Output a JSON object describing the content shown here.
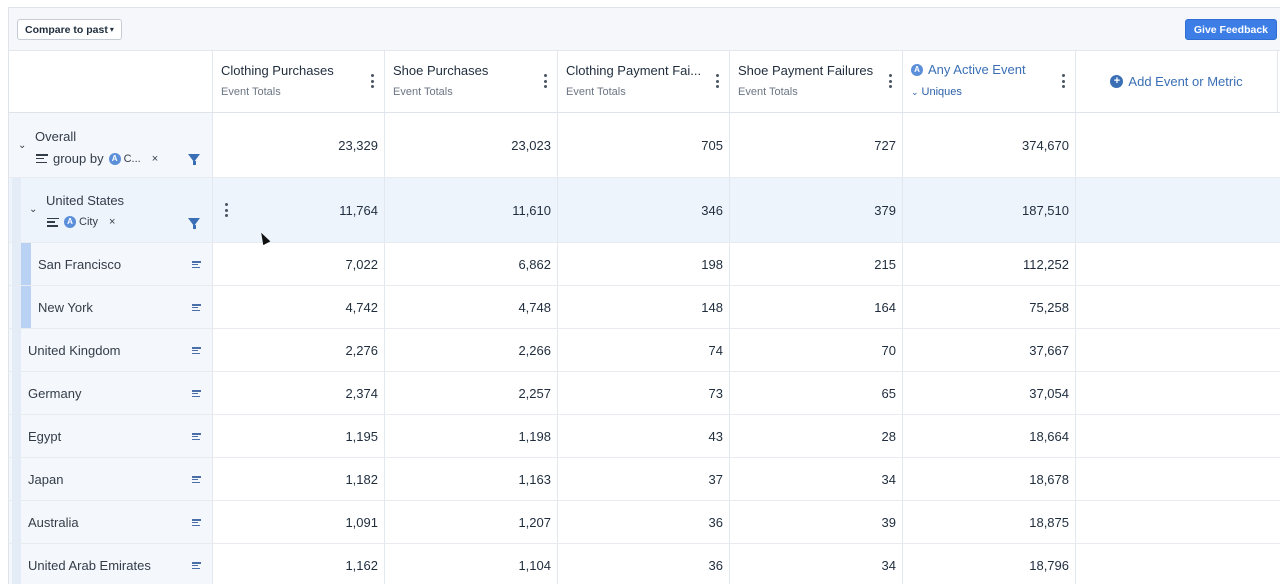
{
  "toolbar": {
    "compare_label": "Compare to past",
    "feedback_label": "Give Feedback"
  },
  "columns": [
    {
      "title": "Clothing Purchases",
      "sub": "Event Totals"
    },
    {
      "title": "Shoe Purchases",
      "sub": "Event Totals"
    },
    {
      "title": "Clothing Payment Fai...",
      "sub": "Event Totals"
    },
    {
      "title": "Shoe Payment Failures",
      "sub": "Event Totals"
    },
    {
      "title": "Any Active Event",
      "sub": "Uniques"
    }
  ],
  "add_metric_label": "Add Event or Metric",
  "overall": {
    "label": "Overall",
    "group_by": "group by",
    "chip": "C...",
    "values": [
      "23,329",
      "23,023",
      "705",
      "727",
      "374,670"
    ]
  },
  "us": {
    "label": "United States",
    "chip": "City",
    "values": [
      "11,764",
      "11,610",
      "346",
      "379",
      "187,510"
    ]
  },
  "rows": [
    {
      "label": "San Francisco",
      "values": [
        "7,022",
        "6,862",
        "198",
        "215",
        "112,252"
      ]
    },
    {
      "label": "New York",
      "values": [
        "4,742",
        "4,748",
        "148",
        "164",
        "75,258"
      ]
    },
    {
      "label": "United Kingdom",
      "values": [
        "2,276",
        "2,266",
        "74",
        "70",
        "37,667"
      ]
    },
    {
      "label": "Germany",
      "values": [
        "2,374",
        "2,257",
        "73",
        "65",
        "37,054"
      ]
    },
    {
      "label": "Egypt",
      "values": [
        "1,195",
        "1,198",
        "43",
        "28",
        "18,664"
      ]
    },
    {
      "label": "Japan",
      "values": [
        "1,182",
        "1,163",
        "37",
        "34",
        "18,678"
      ]
    },
    {
      "label": "Australia",
      "values": [
        "1,091",
        "1,207",
        "36",
        "39",
        "18,875"
      ]
    },
    {
      "label": "United Arab Emirates",
      "values": [
        "1,162",
        "1,104",
        "36",
        "34",
        "18,796"
      ]
    }
  ],
  "icons": {
    "compare_chevron": "chevron-down-icon",
    "kebab": "kebab-menu-icon",
    "globe": "globe-icon",
    "plus": "plus-circle-icon",
    "group": "group-by-icon",
    "filter": "filter-icon",
    "remove": "close-icon"
  },
  "colors": {
    "accent": "#3c7ee6",
    "link": "#3a6fb5",
    "highlight": "#eef4fc"
  }
}
